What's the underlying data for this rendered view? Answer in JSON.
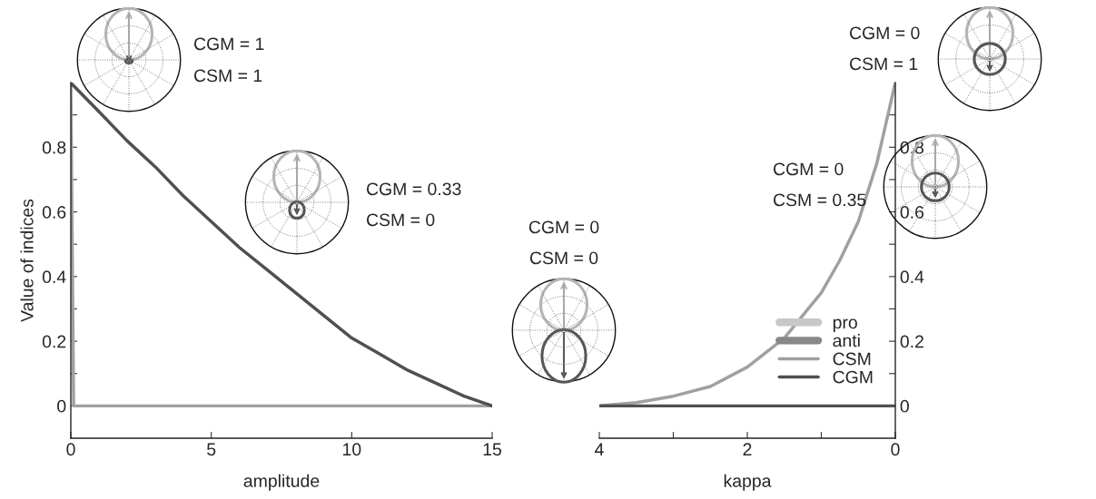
{
  "chart_data": [
    {
      "type": "line",
      "xlabel": "amplitude",
      "ylabel": "Value of indices",
      "x": [
        0,
        0.1,
        1,
        2,
        3,
        4,
        5,
        6,
        7,
        8,
        9,
        10,
        11,
        12,
        13,
        14,
        15
      ],
      "series": [
        {
          "color": "#a0a0a0",
          "values": [
            1,
            0,
            0,
            0,
            0,
            0,
            0,
            0,
            0,
            0,
            0,
            0,
            0,
            0,
            0,
            0,
            0
          ]
        },
        {
          "color": "#505050",
          "values": [
            1,
            0.99,
            0.91,
            0.82,
            0.74,
            0.65,
            0.57,
            0.49,
            0.42,
            0.35,
            0.28,
            0.21,
            0.16,
            0.11,
            0.07,
            0.03,
            0
          ]
        }
      ],
      "xlim": [
        0,
        15
      ],
      "xticks": [
        0,
        5,
        10,
        15
      ],
      "ylim": [
        -0.1,
        1.0
      ],
      "yticks": [
        0,
        {
          "value": 0.1,
          "label": null
        },
        0.2,
        {
          "value": 0.3,
          "label": null
        },
        0.4,
        {
          "value": 0.5,
          "label": null
        },
        0.6,
        {
          "value": 0.7,
          "label": null
        },
        0.8,
        {
          "value": 0.9,
          "label": null
        }
      ],
      "annotations": [
        "CGM = 1",
        "CSM = 1",
        "CGM = 0.33",
        "CSM = 0"
      ],
      "grid": false,
      "legend": false
    },
    {
      "type": "line",
      "xlabel": "kappa",
      "x": [
        4,
        3.5,
        3,
        2.5,
        2,
        1.5,
        1,
        0.75,
        0.5,
        0.25,
        0
      ],
      "series": [
        {
          "name": "pro",
          "color": "#c8c8c8",
          "values": [
            null,
            null,
            null,
            null,
            null,
            null,
            null,
            null,
            null,
            null,
            null
          ]
        },
        {
          "name": "anti",
          "color": "#888888",
          "values": [
            null,
            null,
            null,
            null,
            null,
            null,
            null,
            null,
            null,
            null,
            null
          ]
        },
        {
          "name": "CSM",
          "color": "#a0a0a0",
          "values": [
            0,
            0.01,
            0.03,
            0.06,
            0.12,
            0.21,
            0.35,
            0.45,
            0.57,
            0.75,
            1
          ]
        },
        {
          "name": "CGM",
          "color": "#505050",
          "values": [
            0,
            0,
            0,
            0,
            0,
            0,
            0,
            0,
            0,
            0,
            0
          ]
        }
      ],
      "xlim": [
        4,
        0
      ],
      "xticks": [
        4,
        {
          "value": 3,
          "label": null
        },
        2,
        {
          "value": 1,
          "label": null
        },
        0
      ],
      "ylim": [
        -0.1,
        1.0
      ],
      "yticks": [
        0,
        {
          "value": 0.1,
          "label": null
        },
        0.2,
        {
          "value": 0.3,
          "label": null
        },
        0.4,
        {
          "value": 0.5,
          "label": null
        },
        0.6,
        {
          "value": 0.7,
          "label": null
        },
        0.8,
        {
          "value": 0.9,
          "label": null
        }
      ],
      "annotations": [
        "CGM = 0",
        "CSM = 0",
        "CGM = 0",
        "CSM = 0.35",
        "CGM = 0",
        "CSM = 1"
      ],
      "grid": false,
      "legend": "bottom right"
    }
  ]
}
